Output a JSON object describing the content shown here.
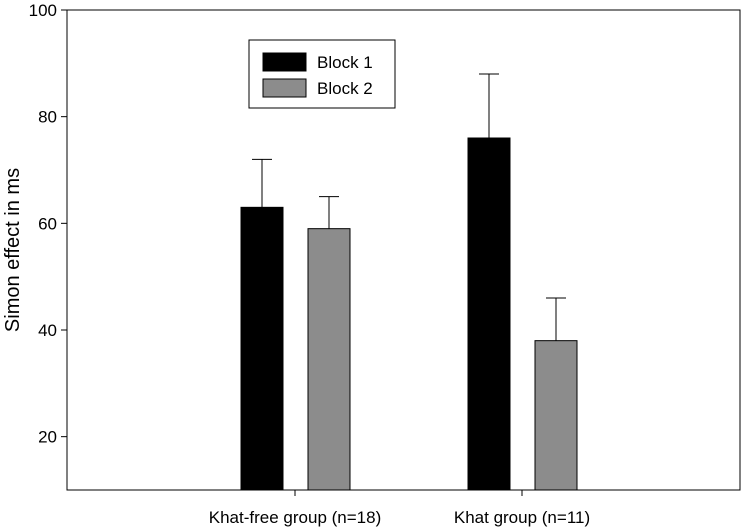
{
  "chart_data": {
    "type": "bar",
    "title": "",
    "xlabel": "",
    "ylabel": "Simon effect in ms",
    "ylim": [
      10,
      100
    ],
    "yticks": [
      20,
      40,
      60,
      80,
      100
    ],
    "categories": [
      "Khat-free group (n=18)",
      "Khat group (n=11)"
    ],
    "series": [
      {
        "name": "Block 1",
        "values": [
          63,
          76
        ],
        "error_plus": [
          9,
          12
        ],
        "color": "#000000"
      },
      {
        "name": "Block 2",
        "values": [
          59,
          38
        ],
        "error_plus": [
          6,
          8
        ],
        "color": "#8c8c8c"
      }
    ],
    "error_bars": "upper only",
    "grid": false,
    "legend_position": "top-left"
  }
}
